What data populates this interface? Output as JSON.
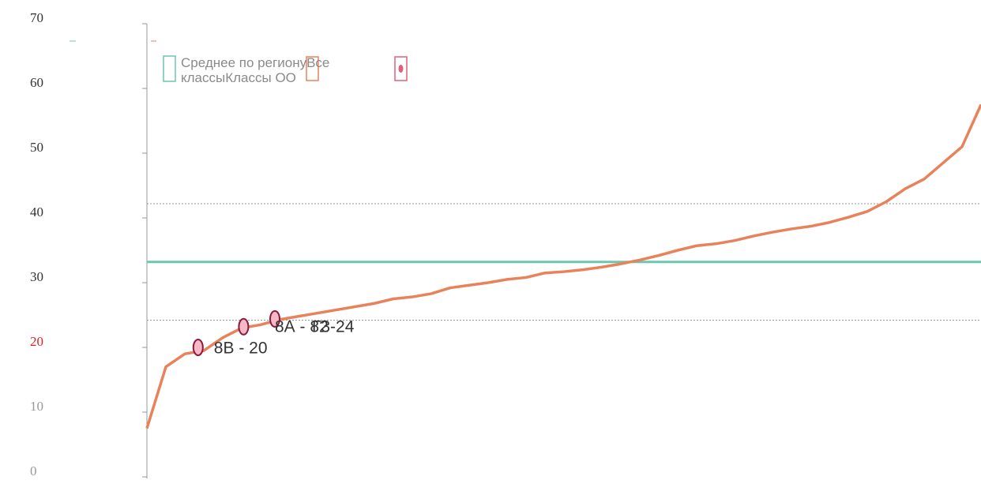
{
  "chart_data": {
    "type": "line",
    "series": [
      {
        "name": "Среднее по региону",
        "color": "#6cc6b0",
        "kind": "hline",
        "values": [
          33.2
        ]
      },
      {
        "name": "Все классы",
        "color": "#e8825a",
        "kind": "line",
        "values": [
          7.5,
          17,
          19,
          19.5,
          21.5,
          23,
          23.5,
          24.3,
          24.8,
          25.3,
          25.8,
          26.3,
          26.8,
          27.5,
          27.8,
          28.3,
          29.2,
          29.6,
          30,
          30.5,
          30.8,
          31.5,
          31.7,
          32,
          32.4,
          32.9,
          33.5,
          34.2,
          35,
          35.7,
          36,
          36.5,
          37.2,
          37.8,
          38.3,
          38.7,
          39.3,
          40.1,
          41,
          42.5,
          44.5,
          46,
          48.5,
          51,
          57.5
        ]
      },
      {
        "name": "Классы ОО",
        "color": "#e0607a",
        "kind": "points",
        "x": [
          2.7,
          5.1,
          6.75
        ],
        "values": [
          20,
          23.2,
          24.4
        ],
        "point_labels": [
          "8В - 20",
          "Г3-24",
          "8А - 82"
        ]
      }
    ],
    "ref_lines": [
      42.2,
      24.2
    ],
    "ylim": [
      0,
      70
    ],
    "yticks": [
      0,
      10,
      20,
      30,
      40,
      50,
      60,
      70
    ],
    "ytick_colors": [
      "#999999",
      "#999999",
      "#e02020",
      "#333333",
      "#333333",
      "#333333",
      "#333333",
      "#333333"
    ]
  }
}
